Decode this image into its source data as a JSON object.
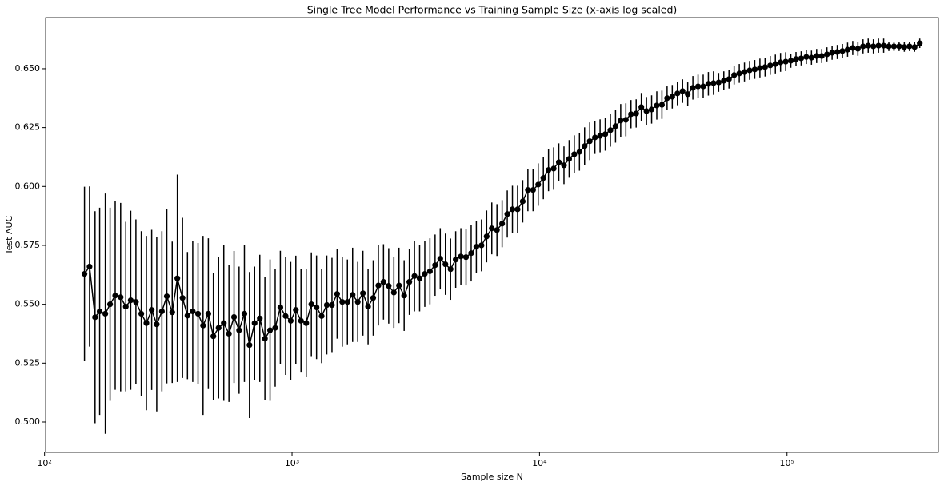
{
  "chart_data": {
    "type": "errorbar",
    "title": "Single Tree Model Performance vs Training Sample Size (x-axis log scaled)",
    "x_label": "Sample size N",
    "y_label": "Test AUC",
    "x_scale": "log",
    "color": "#000000",
    "xlim": [
      101,
      409000
    ],
    "ylim": [
      0.4871,
      0.6717
    ],
    "xticks": [
      {
        "value": 100,
        "label": "10²"
      },
      {
        "value": 1000,
        "label": "10³"
      },
      {
        "value": 10000,
        "label": "10⁴"
      },
      {
        "value": 100000,
        "label": "10⁵"
      }
    ],
    "yticks": [
      {
        "value": 0.5,
        "label": "0.500"
      },
      {
        "value": 0.525,
        "label": "0.525"
      },
      {
        "value": 0.55,
        "label": "0.550"
      },
      {
        "value": 0.575,
        "label": "0.575"
      },
      {
        "value": 0.6,
        "label": "0.600"
      },
      {
        "value": 0.625,
        "label": "0.625"
      },
      {
        "value": 0.65,
        "label": "0.650"
      }
    ],
    "x": [
      145,
      152,
      160,
      167,
      176,
      184,
      193,
      203,
      213,
      223,
      234,
      246,
      258,
      271,
      284,
      298,
      312,
      328,
      344,
      361,
      378,
      397,
      417,
      437,
      459,
      481,
      505,
      530,
      556,
      583,
      611,
      642,
      673,
      706,
      741,
      777,
      815,
      855,
      897,
      942,
      988,
      1036,
      1087,
      1141,
      1197,
      1256,
      1317,
      1382,
      1450,
      1521,
      1596,
      1674,
      1757,
      1843,
      1934,
      2029,
      2128,
      2233,
      2342,
      2458,
      2579,
      2705,
      2838,
      2978,
      3124,
      3277,
      3439,
      3607,
      3785,
      3971,
      4166,
      4371,
      4585,
      4811,
      5047,
      5295,
      5555,
      5828,
      6115,
      6415,
      6730,
      7061,
      7408,
      7772,
      8154,
      8555,
      8975,
      9416,
      9879,
      10364,
      10873,
      11408,
      11968,
      12556,
      13173,
      13821,
      14500,
      15212,
      15960,
      16745,
      17567,
      18431,
      19336,
      20286,
      21283,
      22329,
      23425,
      24576,
      25785,
      27051,
      28381,
      29776,
      31239,
      32774,
      34385,
      36075,
      37848,
      39707,
      41659,
      43706,
      45853,
      48107,
      50470,
      52950,
      55552,
      58283,
      61147,
      64151,
      67303,
      70611,
      74081,
      77721,
      81539,
      85543,
      89751,
      94159,
      98787,
      103642,
      108734,
      114077,
      119683,
      125564,
      131734,
      138208,
      145000,
      152120,
      159600,
      167450,
      175670,
      184310,
      193360,
      202860,
      212830,
      223290,
      234250,
      245760,
      257850,
      270510,
      283810,
      297760,
      312390,
      327740,
      343850
    ],
    "values": [
      0.5629,
      0.566,
      0.5445,
      0.547,
      0.546,
      0.55,
      0.5537,
      0.553,
      0.549,
      0.5517,
      0.551,
      0.546,
      0.542,
      0.5476,
      0.5415,
      0.547,
      0.5534,
      0.5466,
      0.561,
      0.5527,
      0.5452,
      0.547,
      0.546,
      0.541,
      0.546,
      0.5364,
      0.54,
      0.542,
      0.5375,
      0.5446,
      0.539,
      0.546,
      0.5327,
      0.542,
      0.544,
      0.5354,
      0.539,
      0.54,
      0.5487,
      0.545,
      0.543,
      0.5476,
      0.543,
      0.542,
      0.55,
      0.5487,
      0.545,
      0.5497,
      0.5497,
      0.5544,
      0.551,
      0.551,
      0.554,
      0.551,
      0.5547,
      0.549,
      0.5527,
      0.558,
      0.5595,
      0.5578,
      0.555,
      0.558,
      0.5537,
      0.5595,
      0.562,
      0.561,
      0.5629,
      0.564,
      0.5666,
      0.5693,
      0.567,
      0.5649,
      0.569,
      0.5703,
      0.57,
      0.5717,
      0.5744,
      0.575,
      0.5788,
      0.5822,
      0.5815,
      0.5842,
      0.5883,
      0.5903,
      0.5903,
      0.5937,
      0.5985,
      0.5985,
      0.6008,
      0.6036,
      0.607,
      0.6076,
      0.6103,
      0.609,
      0.6117,
      0.6137,
      0.6147,
      0.6171,
      0.6192,
      0.6208,
      0.6215,
      0.6222,
      0.6239,
      0.6256,
      0.628,
      0.6283,
      0.6307,
      0.631,
      0.6337,
      0.632,
      0.6327,
      0.6344,
      0.6347,
      0.6375,
      0.6381,
      0.6395,
      0.6405,
      0.6392,
      0.6419,
      0.6425,
      0.6425,
      0.6436,
      0.6439,
      0.6442,
      0.6449,
      0.6456,
      0.6473,
      0.648,
      0.6486,
      0.6493,
      0.6497,
      0.6503,
      0.6507,
      0.6514,
      0.652,
      0.6527,
      0.653,
      0.6534,
      0.6541,
      0.6544,
      0.655,
      0.6547,
      0.6554,
      0.6554,
      0.6561,
      0.6568,
      0.6571,
      0.6575,
      0.6581,
      0.6588,
      0.6585,
      0.6595,
      0.6598,
      0.6595,
      0.6598,
      0.6598,
      0.6595,
      0.6595,
      0.6595,
      0.6592,
      0.6595,
      0.6592,
      0.6608
    ],
    "errors": [
      0.037,
      0.034,
      0.045,
      0.044,
      0.051,
      0.041,
      0.04,
      0.04,
      0.036,
      0.038,
      0.035,
      0.035,
      0.037,
      0.034,
      0.037,
      0.034,
      0.037,
      0.03,
      0.044,
      0.034,
      0.027,
      0.03,
      0.03,
      0.038,
      0.032,
      0.027,
      0.03,
      0.033,
      0.029,
      0.028,
      0.027,
      0.029,
      0.031,
      0.024,
      0.027,
      0.026,
      0.03,
      0.025,
      0.024,
      0.025,
      0.025,
      0.023,
      0.022,
      0.023,
      0.022,
      0.022,
      0.02,
      0.021,
      0.02,
      0.019,
      0.019,
      0.018,
      0.02,
      0.017,
      0.018,
      0.016,
      0.016,
      0.017,
      0.016,
      0.016,
      0.015,
      0.016,
      0.015,
      0.014,
      0.015,
      0.014,
      0.014,
      0.014,
      0.013,
      0.013,
      0.013,
      0.013,
      0.012,
      0.012,
      0.012,
      0.012,
      0.011,
      0.011,
      0.011,
      0.011,
      0.011,
      0.01,
      0.01,
      0.01,
      0.01,
      0.009,
      0.009,
      0.009,
      0.009,
      0.009,
      0.009,
      0.009,
      0.008,
      0.008,
      0.008,
      0.008,
      0.008,
      0.008,
      0.008,
      0.007,
      0.007,
      0.007,
      0.007,
      0.007,
      0.007,
      0.007,
      0.006,
      0.006,
      0.006,
      0.006,
      0.006,
      0.006,
      0.006,
      0.005,
      0.005,
      0.005,
      0.005,
      0.005,
      0.005,
      0.005,
      0.005,
      0.005,
      0.005,
      0.004,
      0.004,
      0.004,
      0.004,
      0.004,
      0.004,
      0.004,
      0.004,
      0.004,
      0.004,
      0.004,
      0.004,
      0.004,
      0.004,
      0.003,
      0.003,
      0.003,
      0.003,
      0.003,
      0.003,
      0.003,
      0.003,
      0.003,
      0.003,
      0.003,
      0.003,
      0.003,
      0.003,
      0.003,
      0.003,
      0.003,
      0.003,
      0.003,
      0.002,
      0.002,
      0.002,
      0.002,
      0.002,
      0.002,
      0.002
    ]
  }
}
